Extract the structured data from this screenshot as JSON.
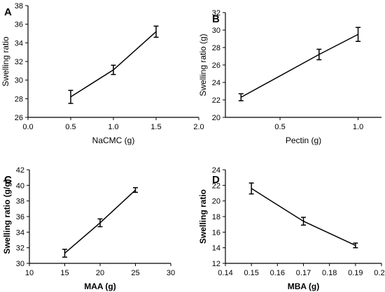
{
  "chart_data": [
    {
      "panel": "A",
      "type": "line",
      "xlabel": "NaCMC (g)",
      "ylabel": "Swelling ratio",
      "label_weight": "normal",
      "xlim": [
        0.0,
        2.0
      ],
      "ylim": [
        26,
        38
      ],
      "xticks": [
        0.0,
        0.5,
        1.0,
        1.5,
        2.0
      ],
      "xtick_labels": [
        "0.0",
        "0.5",
        "1.0",
        "1.5",
        "2.0"
      ],
      "yticks": [
        26,
        28,
        30,
        32,
        34,
        36,
        38
      ],
      "ytick_labels": [
        "26",
        "28",
        "30",
        "32",
        "34",
        "36",
        "38"
      ],
      "x": [
        0.5,
        1.0,
        1.5
      ],
      "y": [
        28.2,
        31.1,
        35.2
      ],
      "error": [
        0.7,
        0.5,
        0.6
      ]
    },
    {
      "panel": "B",
      "type": "line",
      "xlabel": "Pectin (g)",
      "ylabel": "Swelling ratio (g)",
      "label_weight": "normal",
      "xlim": [
        0.15,
        1.15
      ],
      "ylim": [
        20,
        32
      ],
      "xticks": [
        0.5,
        1.0
      ],
      "xtick_labels": [
        "0.5",
        "1.0"
      ],
      "yticks": [
        20,
        22,
        24,
        26,
        28,
        30,
        32
      ],
      "ytick_labels": [
        "20",
        "22",
        "24",
        "26",
        "28",
        "30",
        "32"
      ],
      "x": [
        0.25,
        0.75,
        1.0
      ],
      "y": [
        22.3,
        27.2,
        29.5
      ],
      "error": [
        0.4,
        0.6,
        0.8
      ]
    },
    {
      "panel": "C",
      "type": "line",
      "xlabel": "MAA (g)",
      "ylabel": "Swelling ratio (g/g)",
      "label_weight": "bold",
      "xlim": [
        10,
        30
      ],
      "ylim": [
        30,
        42
      ],
      "xticks": [
        10,
        15,
        20,
        25,
        30
      ],
      "xtick_labels": [
        "10",
        "15",
        "20",
        "25",
        "30"
      ],
      "yticks": [
        30,
        32,
        34,
        36,
        38,
        40,
        42
      ],
      "ytick_labels": [
        "30",
        "32",
        "34",
        "36",
        "38",
        "40",
        "42"
      ],
      "x": [
        15,
        20,
        25
      ],
      "y": [
        31.3,
        35.2,
        39.4
      ],
      "error": [
        0.5,
        0.5,
        0.3
      ]
    },
    {
      "panel": "D",
      "type": "line",
      "xlabel": "MBA (g)",
      "ylabel": "Swelling ratio",
      "label_weight": "bold",
      "xlim": [
        0.14,
        0.2
      ],
      "ylim": [
        12,
        24
      ],
      "xticks": [
        0.14,
        0.15,
        0.16,
        0.17,
        0.18,
        0.19,
        0.2
      ],
      "xtick_labels": [
        "0.14",
        "0.15",
        "0.16",
        "0.17",
        "0.18",
        "0.19",
        "0.20"
      ],
      "yticks": [
        12,
        14,
        16,
        18,
        20,
        22,
        24
      ],
      "ytick_labels": [
        "12",
        "14",
        "16",
        "18",
        "20",
        "22",
        "24"
      ],
      "x": [
        0.15,
        0.17,
        0.19
      ],
      "y": [
        21.6,
        17.4,
        14.3
      ],
      "error": [
        0.7,
        0.5,
        0.3
      ]
    }
  ]
}
